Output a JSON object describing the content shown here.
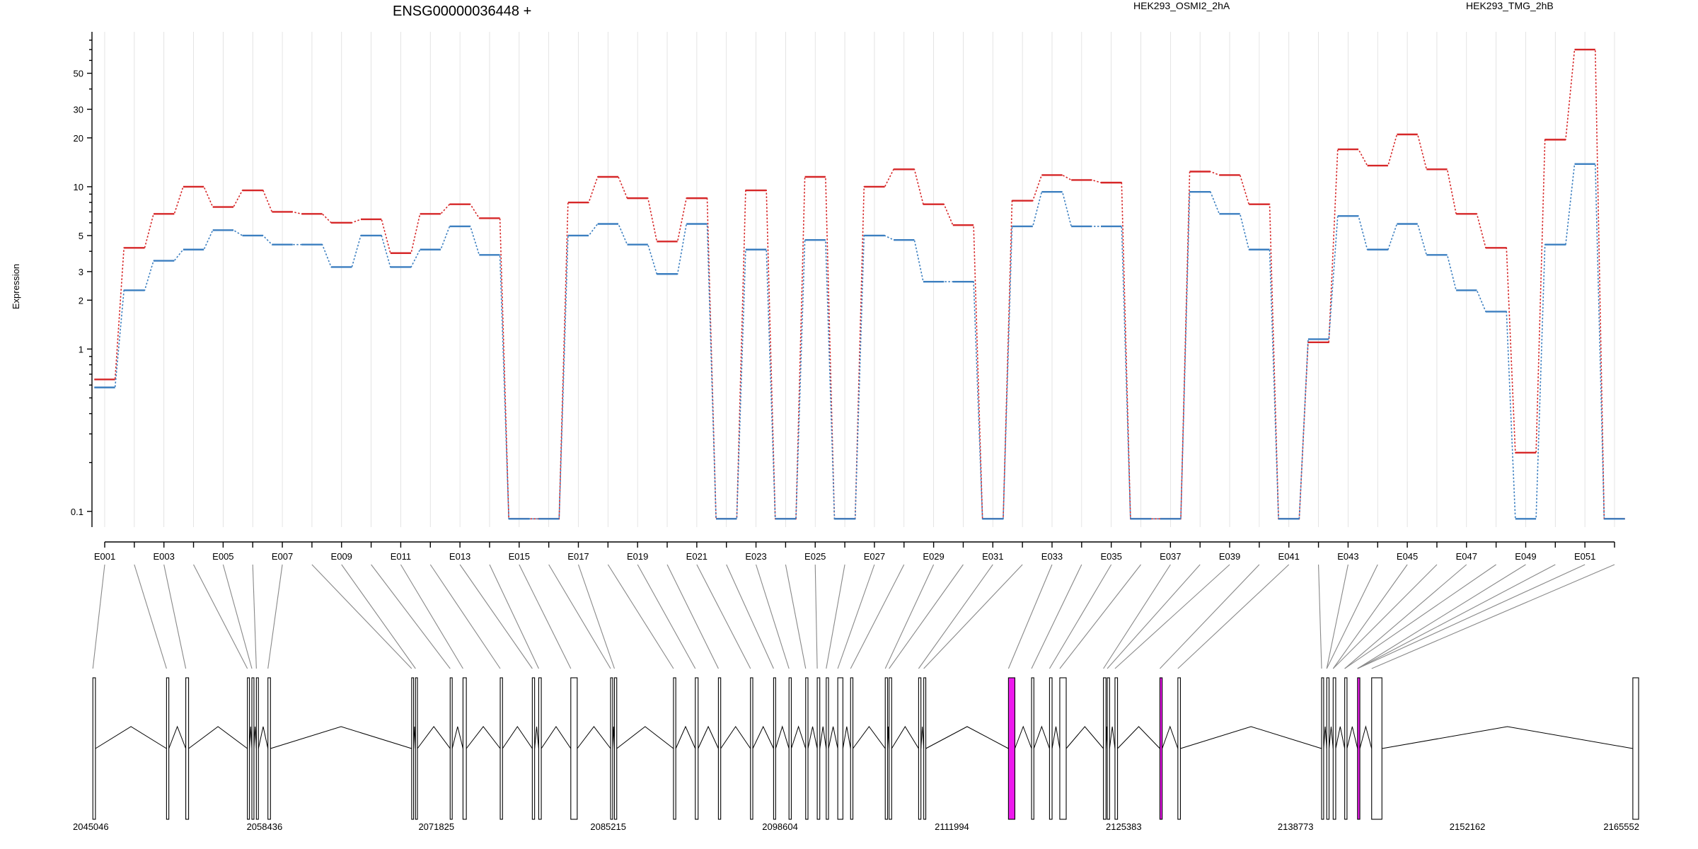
{
  "chart_data": {
    "type": "line",
    "title": "ENSG00000036448 +",
    "ylabel": "Expression",
    "yscale": "log",
    "ylim": [
      0.08,
      90
    ],
    "y_ticks": [
      0.1,
      1,
      2,
      3,
      5,
      10,
      20,
      30,
      50
    ],
    "y_tick_labels": [
      "0.1",
      "1",
      "2",
      "3",
      "5",
      "10",
      "20",
      "30",
      "50"
    ],
    "grid": true,
    "legend": "top-right",
    "categories": [
      "E001",
      "E002",
      "E003",
      "E004",
      "E005",
      "E006",
      "E007",
      "E008",
      "E009",
      "E010",
      "E011",
      "E012",
      "E013",
      "E014",
      "E015",
      "E016",
      "E017",
      "E018",
      "E019",
      "E020",
      "E021",
      "E022",
      "E023",
      "E024",
      "E025",
      "E026",
      "E027",
      "E028",
      "E029",
      "E030",
      "E031",
      "E032",
      "E033",
      "E034",
      "E035",
      "E036",
      "E037",
      "E038",
      "E039",
      "E040",
      "E041",
      "E042",
      "E043",
      "E044",
      "E045",
      "E046",
      "E047",
      "E048",
      "E049",
      "E050",
      "E051",
      "E052"
    ],
    "x_tick_labels": [
      "E001",
      "E003",
      "E005",
      "E007",
      "E009",
      "E011",
      "E013",
      "E015",
      "E017",
      "E019",
      "E021",
      "E023",
      "E025",
      "E027",
      "E029",
      "E031",
      "E033",
      "E035",
      "E037",
      "E039",
      "E041",
      "E043",
      "E045",
      "E047",
      "E049",
      "E051"
    ],
    "series": [
      {
        "name": "HEK293_OSMI2_2hA",
        "color": "#d62728",
        "values": [
          0.65,
          4.2,
          6.8,
          10,
          7.5,
          9.5,
          7,
          6.8,
          6,
          6.3,
          3.9,
          6.8,
          7.8,
          6.4,
          0.09,
          0.09,
          8,
          11.5,
          8.5,
          4.6,
          8.5,
          0.09,
          9.5,
          0.09,
          11.5,
          0.09,
          10,
          12.8,
          7.8,
          5.8,
          0.09,
          8.2,
          11.8,
          11,
          10.6,
          0.09,
          0.09,
          12.4,
          11.8,
          7.8,
          0.09,
          1.1,
          17,
          13.5,
          21,
          12.8,
          6.8,
          4.2,
          0.23,
          19.5,
          70,
          0.09
        ]
      },
      {
        "name": "HEK293_TMG_2hB",
        "color": "#3c7fc0",
        "values": [
          0.58,
          2.3,
          3.5,
          4.1,
          5.4,
          5,
          4.4,
          4.4,
          3.2,
          5,
          3.2,
          4.1,
          5.7,
          3.8,
          0.09,
          0.09,
          5,
          5.9,
          4.4,
          2.9,
          5.9,
          0.09,
          4.1,
          0.09,
          4.7,
          0.09,
          5,
          4.7,
          2.6,
          2.6,
          0.09,
          5.7,
          9.3,
          5.7,
          5.7,
          0.09,
          0.09,
          9.3,
          6.8,
          4.1,
          0.09,
          1.15,
          6.6,
          4.1,
          5.9,
          3.8,
          2.3,
          1.7,
          0.09,
          4.4,
          13.8,
          0.09
        ]
      }
    ],
    "gene_axis": {
      "tick_values": [
        2045046,
        2058436,
        2071825,
        2085215,
        2098604,
        2111994,
        2125383,
        2138773,
        2152162,
        2165552
      ],
      "tick_labels": [
        "2045046",
        "2058436",
        "2071825",
        "2085215",
        "2098604",
        "2111994",
        "2125383",
        "2138773",
        "2152162",
        "2165552"
      ],
      "range": [
        2045046,
        2165552
      ]
    },
    "exons": [
      [
        2045060,
        2045260
      ],
      [
        2050800,
        2050980
      ],
      [
        2052300,
        2052520
      ],
      [
        2057100,
        2057260
      ],
      [
        2057450,
        2057610
      ],
      [
        2057800,
        2057960
      ],
      [
        2058700,
        2058900
      ],
      [
        2069900,
        2070050
      ],
      [
        2070200,
        2070350
      ],
      [
        2072900,
        2073060
      ],
      [
        2073900,
        2074160
      ],
      [
        2076800,
        2076980
      ],
      [
        2079300,
        2079480
      ],
      [
        2079800,
        2080000
      ],
      [
        2082300,
        2082800
      ],
      [
        2085400,
        2085560
      ],
      [
        2085700,
        2085880
      ],
      [
        2090300,
        2090480
      ],
      [
        2092000,
        2092220
      ],
      [
        2093800,
        2093980
      ],
      [
        2096300,
        2096480
      ],
      [
        2098100,
        2098260
      ],
      [
        2099300,
        2099480
      ],
      [
        2100600,
        2100780
      ],
      [
        2101500,
        2101700
      ],
      [
        2102200,
        2102380
      ],
      [
        2103100,
        2103500
      ],
      [
        2104100,
        2104280
      ],
      [
        2106800,
        2106980
      ],
      [
        2107100,
        2107300
      ],
      [
        2109400,
        2109580
      ],
      [
        2109800,
        2109960
      ],
      [
        2116400,
        2116900
      ],
      [
        2118200,
        2118380
      ],
      [
        2119600,
        2119800
      ],
      [
        2120400,
        2120900
      ],
      [
        2123800,
        2124000
      ],
      [
        2124100,
        2124280
      ],
      [
        2124700,
        2124900
      ],
      [
        2128200,
        2128380
      ],
      [
        2129600,
        2129800
      ],
      [
        2140800,
        2140960
      ],
      [
        2141200,
        2141380
      ],
      [
        2141700,
        2141900
      ],
      [
        2142600,
        2142780
      ],
      [
        2143600,
        2143780
      ],
      [
        2144700,
        2145500
      ],
      [
        2165050,
        2165500
      ]
    ],
    "highlighted_exons": [
      32,
      39,
      45
    ],
    "exon_for_category": [
      0,
      1,
      2,
      3,
      4,
      5,
      6,
      7,
      8,
      9,
      10,
      11,
      12,
      13,
      14,
      15,
      16,
      17,
      18,
      19,
      20,
      21,
      22,
      23,
      24,
      25,
      26,
      27,
      28,
      29,
      30,
      31,
      32,
      33,
      34,
      35,
      36,
      37,
      38,
      39,
      40,
      41,
      42,
      42,
      43,
      43,
      44,
      44,
      45,
      45,
      45,
      46
    ]
  }
}
